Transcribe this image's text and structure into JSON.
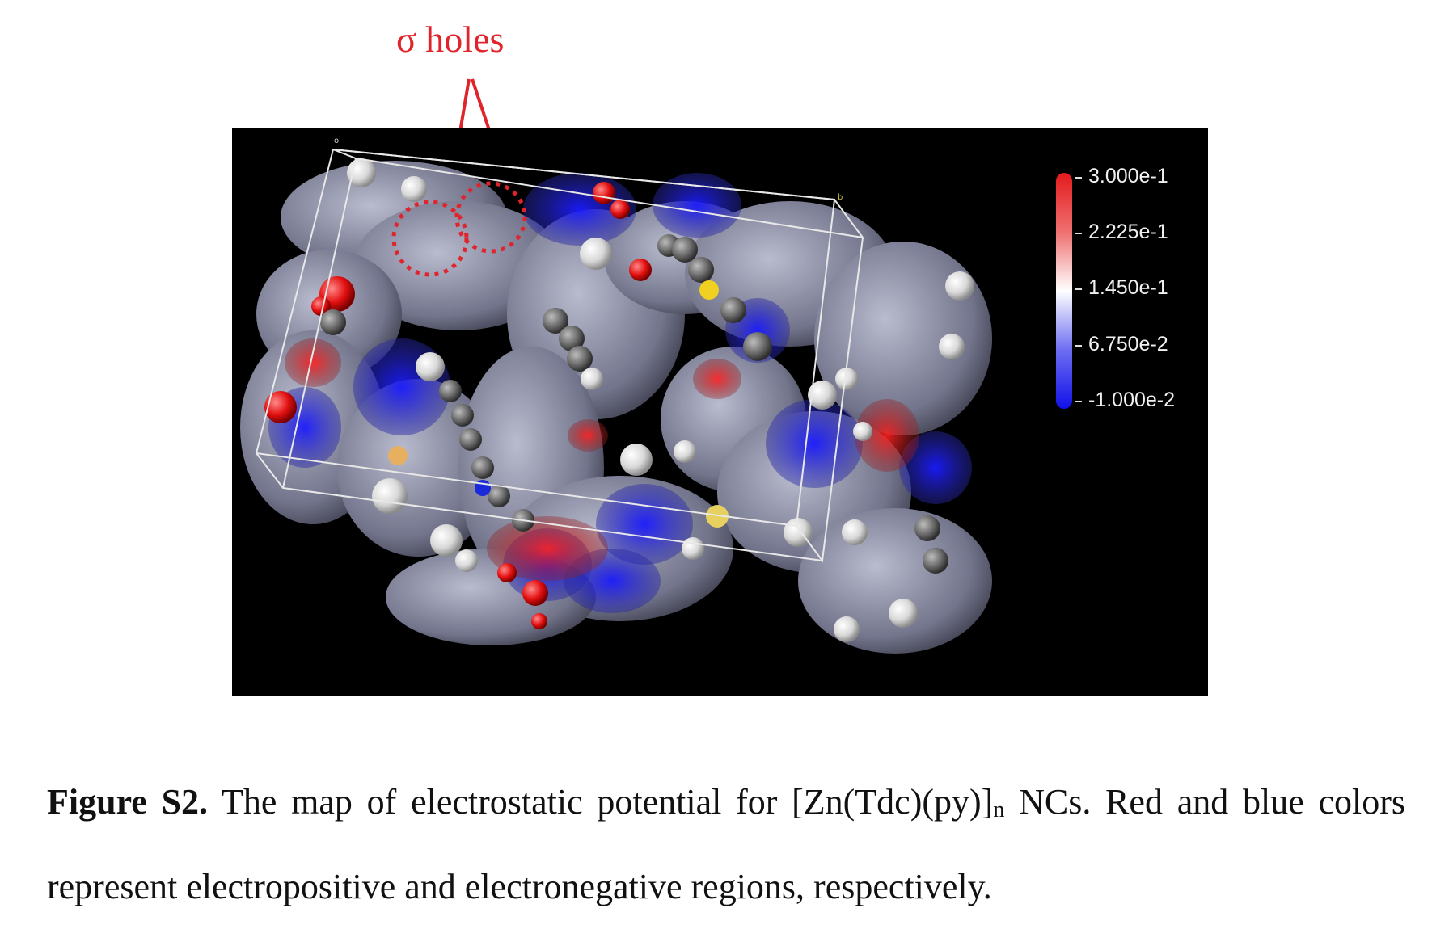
{
  "annotation": {
    "label": "σ holes",
    "color": "#e0242b"
  },
  "figure": {
    "background": "#000000",
    "axis_labels": {
      "origin": "o",
      "b": "b"
    },
    "legend": {
      "ticks": [
        "3.000e-1",
        "2.225e-1",
        "1.450e-1",
        "6.750e-2",
        "-1.000e-2"
      ],
      "gradient_colors": [
        "#e31a1c",
        "#ffffff",
        "#1010e8"
      ]
    }
  },
  "caption": {
    "label": "Figure S2.",
    "text_before_sub": " The map of electrostatic potential for [Zn(Tdc)(py)]",
    "subscript": "n",
    "text_after_sub": " NCs. Red and blue colors represent electropositive and electronegative regions, respectively."
  }
}
